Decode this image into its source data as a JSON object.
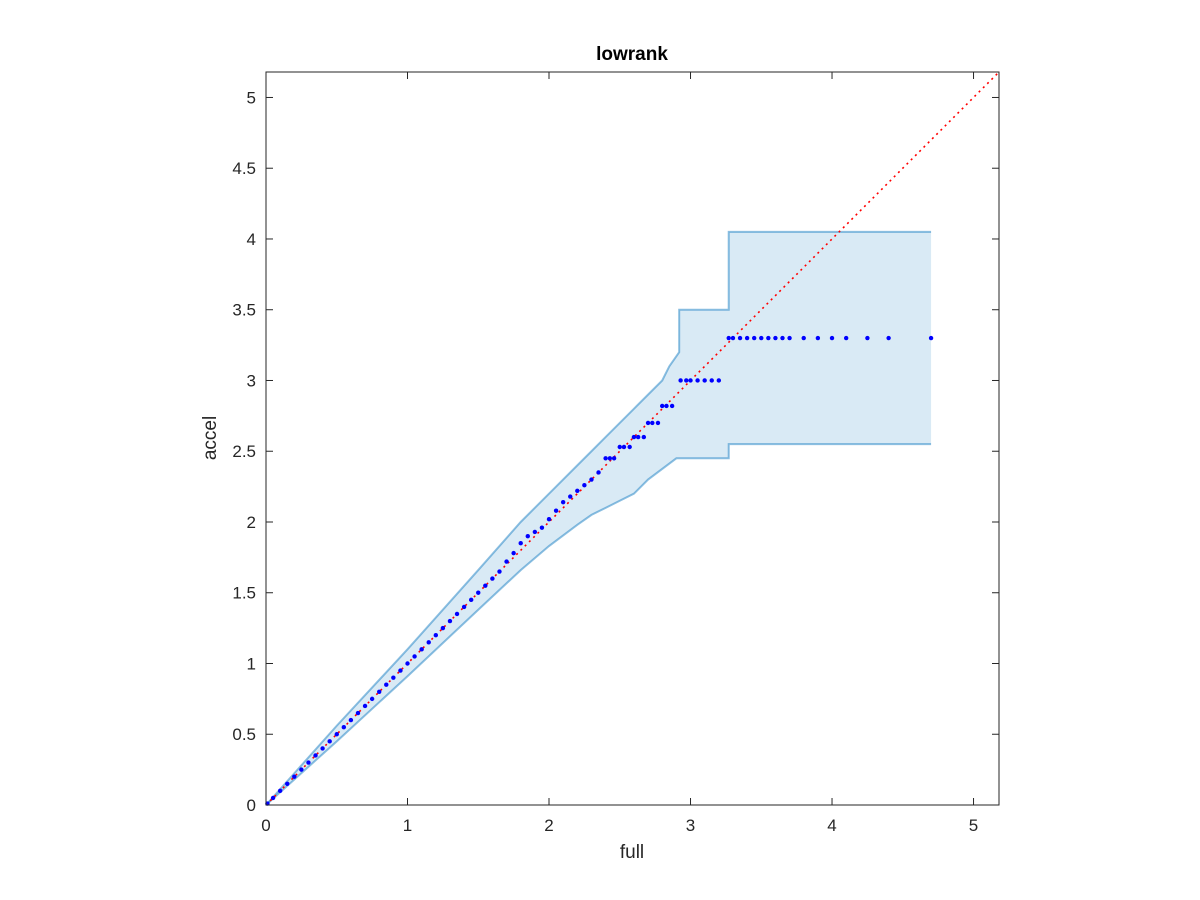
{
  "chart_data": {
    "type": "scatter",
    "title": "lowrank",
    "xlabel": "full",
    "ylabel": "accel",
    "xlim": [
      0,
      5.18
    ],
    "ylim": [
      0,
      5.18
    ],
    "xticks": [
      0,
      1,
      2,
      3,
      4,
      5
    ],
    "xtick_labels": [
      "0",
      "1",
      "2",
      "3",
      "4",
      "5"
    ],
    "yticks": [
      0,
      0.5,
      1,
      1.5,
      2,
      2.5,
      3,
      3.5,
      4,
      4.5,
      5
    ],
    "ytick_labels": [
      "0",
      "0.5",
      "1",
      "1.5",
      "2",
      "2.5",
      "3",
      "3.5",
      "4",
      "4.5",
      "5"
    ],
    "grid": false,
    "legend": "none",
    "reference_line": {
      "x": [
        0,
        5.18
      ],
      "y": [
        0,
        5.18
      ],
      "style": "dotted",
      "color": "#ff0000"
    },
    "band": {
      "color": "#0072bd",
      "fill_opacity": 0.15,
      "upper": [
        [
          0,
          0
        ],
        [
          0.5,
          0.56
        ],
        [
          1,
          1.1
        ],
        [
          1.5,
          1.66
        ],
        [
          1.8,
          2.0
        ],
        [
          2.0,
          2.2
        ],
        [
          2.2,
          2.4
        ],
        [
          2.3,
          2.5
        ],
        [
          2.4,
          2.6
        ],
        [
          2.5,
          2.7
        ],
        [
          2.6,
          2.8
        ],
        [
          2.7,
          2.9
        ],
        [
          2.8,
          3.0
        ],
        [
          2.85,
          3.1
        ],
        [
          2.92,
          3.2
        ],
        [
          2.92,
          3.5
        ],
        [
          3.27,
          3.5
        ],
        [
          3.27,
          4.05
        ],
        [
          4.7,
          4.05
        ]
      ],
      "lower": [
        [
          0,
          0
        ],
        [
          0.5,
          0.45
        ],
        [
          1,
          0.91
        ],
        [
          1.5,
          1.38
        ],
        [
          1.8,
          1.66
        ],
        [
          2.0,
          1.83
        ],
        [
          2.2,
          1.98
        ],
        [
          2.3,
          2.05
        ],
        [
          2.4,
          2.1
        ],
        [
          2.5,
          2.15
        ],
        [
          2.6,
          2.2
        ],
        [
          2.7,
          2.3
        ],
        [
          2.9,
          2.45
        ],
        [
          3.27,
          2.45
        ],
        [
          3.27,
          2.55
        ],
        [
          4.7,
          2.55
        ]
      ]
    },
    "series": [
      {
        "marker_color": "#0000ff",
        "x": [
          0.01,
          0.05,
          0.1,
          0.15,
          0.2,
          0.25,
          0.3,
          0.35,
          0.4,
          0.45,
          0.5,
          0.55,
          0.6,
          0.65,
          0.7,
          0.75,
          0.8,
          0.85,
          0.9,
          0.95,
          1.0,
          1.05,
          1.1,
          1.15,
          1.2,
          1.25,
          1.3,
          1.35,
          1.4,
          1.45,
          1.5,
          1.55,
          1.6,
          1.65,
          1.7,
          1.75,
          1.8,
          1.85,
          1.9,
          1.95,
          2.0,
          2.05,
          2.1,
          2.15,
          2.2,
          2.25,
          2.3,
          2.35,
          2.4,
          2.43,
          2.46,
          2.5,
          2.53,
          2.57,
          2.6,
          2.63,
          2.67,
          2.7,
          2.73,
          2.77,
          2.8,
          2.83,
          2.87,
          2.93,
          2.97,
          3.0,
          3.05,
          3.1,
          3.15,
          3.2,
          3.27,
          3.3,
          3.35,
          3.4,
          3.45,
          3.5,
          3.55,
          3.6,
          3.65,
          3.7,
          3.8,
          3.9,
          4.0,
          4.1,
          4.25,
          4.4,
          4.7
        ],
        "y": [
          0.01,
          0.05,
          0.1,
          0.15,
          0.2,
          0.25,
          0.3,
          0.35,
          0.4,
          0.45,
          0.5,
          0.55,
          0.6,
          0.65,
          0.7,
          0.75,
          0.8,
          0.85,
          0.9,
          0.95,
          1.0,
          1.05,
          1.1,
          1.15,
          1.2,
          1.25,
          1.3,
          1.35,
          1.4,
          1.45,
          1.5,
          1.55,
          1.6,
          1.65,
          1.72,
          1.78,
          1.85,
          1.9,
          1.93,
          1.96,
          2.02,
          2.08,
          2.14,
          2.18,
          2.22,
          2.26,
          2.3,
          2.35,
          2.45,
          2.45,
          2.45,
          2.53,
          2.53,
          2.53,
          2.6,
          2.6,
          2.6,
          2.7,
          2.7,
          2.7,
          2.82,
          2.82,
          2.82,
          3.0,
          3.0,
          3.0,
          3.0,
          3.0,
          3.0,
          3.0,
          3.3,
          3.3,
          3.3,
          3.3,
          3.3,
          3.3,
          3.3,
          3.3,
          3.3,
          3.3,
          3.3,
          3.3,
          3.3,
          3.3,
          3.3,
          3.3,
          3.3
        ]
      }
    ]
  }
}
